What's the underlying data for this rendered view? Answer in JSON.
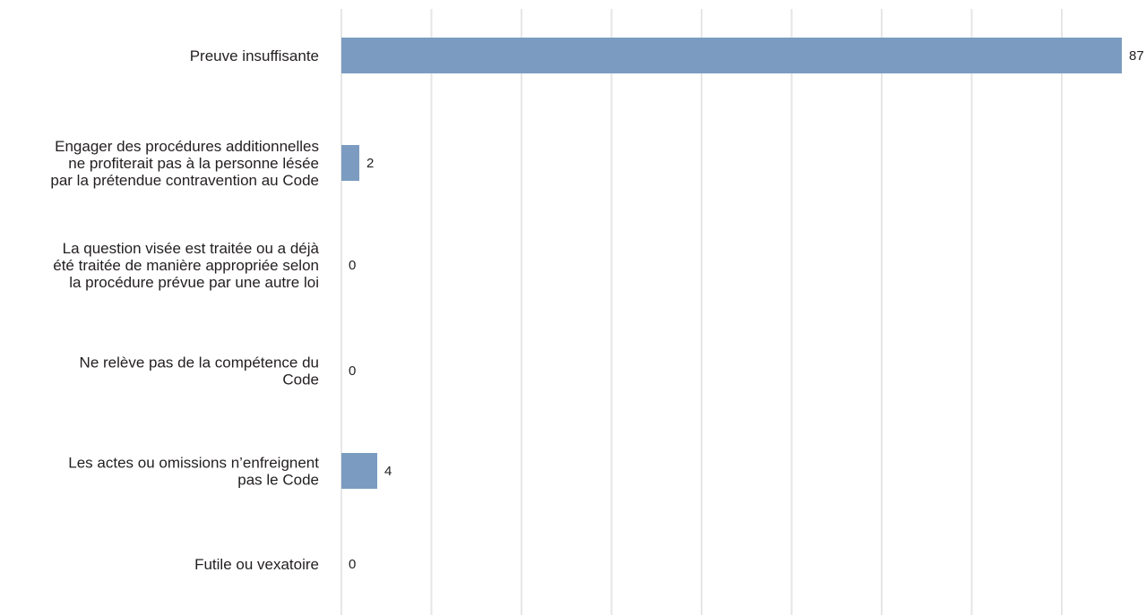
{
  "chart_data": {
    "type": "bar",
    "orientation": "horizontal",
    "categories": [
      [
        "Preuve insuffisante"
      ],
      [
        "Engager des procédures additionnelles",
        "ne profiterait pas à la personne lésée",
        "par la prétendue contravention au Code"
      ],
      [
        "La question visée est traitée ou a déjà",
        "été traitée de manière appropriée selon",
        "la procédure prévue par une autre loi"
      ],
      [
        "Ne relève pas de la compétence du",
        "Code"
      ],
      [
        "Les actes ou omissions n’enfreignent",
        "pas le Code"
      ],
      [
        "Futile ou vexatoire"
      ]
    ],
    "values": [
      87,
      2,
      0,
      0,
      4,
      0
    ],
    "value_labels": [
      "87",
      "2",
      "0",
      "0",
      "4",
      "0"
    ],
    "xlim": [
      0,
      87
    ],
    "grid": true,
    "colors": {
      "bar": "#7b9cc0",
      "grid": "#e6e6e6",
      "text": "#231f20"
    }
  }
}
